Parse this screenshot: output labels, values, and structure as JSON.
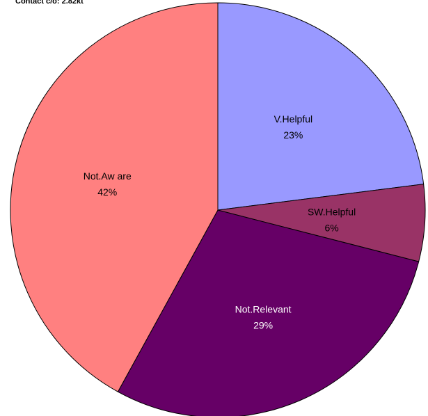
{
  "chart_data": {
    "type": "pie",
    "title": "Contact c/o: 2.82kt",
    "start_angle_deg": 0,
    "direction": "clockwise",
    "slices": [
      {
        "label": "V.Helpful",
        "percent_label": "23%",
        "value": 23,
        "color": "#9999ff",
        "text_color": "#000000"
      },
      {
        "label": "SW.Helpful",
        "percent_label": "6%",
        "value": 6,
        "color": "#993366",
        "text_color": "#000000"
      },
      {
        "label": "Not.Relevant",
        "percent_label": "29%",
        "value": 29,
        "color": "#660066",
        "text_color": "#ffffff"
      },
      {
        "label": "Not.Aw are",
        "percent_label": "42%",
        "value": 42,
        "color": "#ff8080",
        "text_color": "#000000"
      }
    ]
  }
}
